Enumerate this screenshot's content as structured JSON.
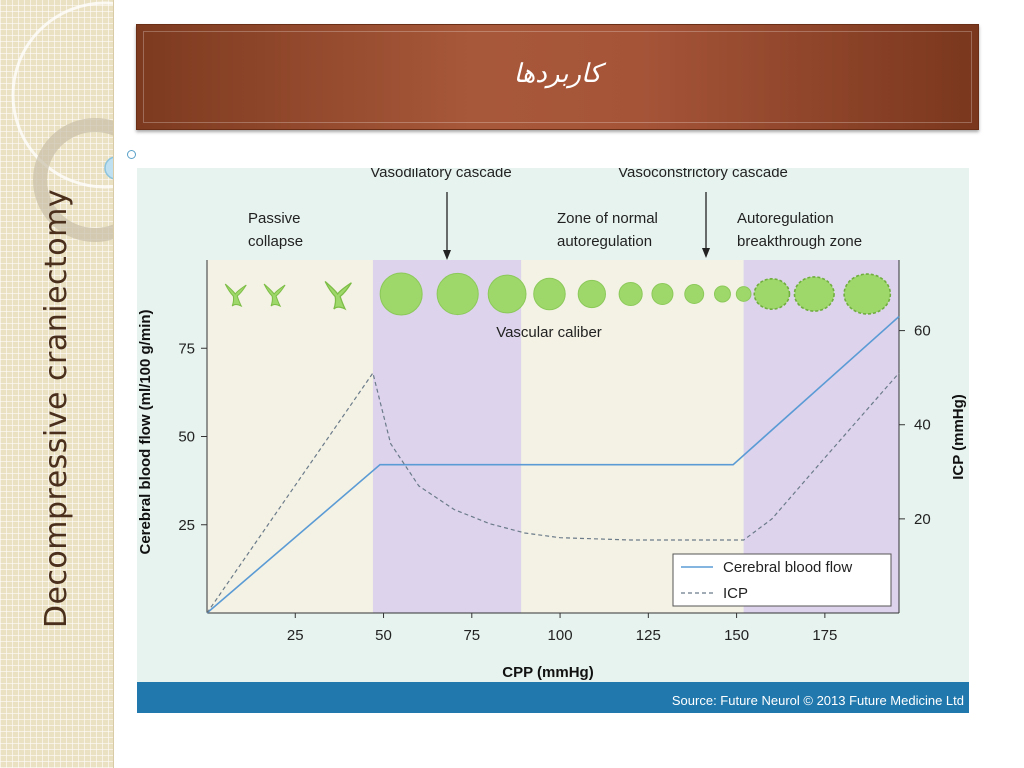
{
  "slide": {
    "title": "کاربردها",
    "sidebar_text": "Decompressive craniectomy"
  },
  "colors": {
    "banner": "#a2533a",
    "figure_background": "#e7f3ef",
    "zone_beige": "#f4f2e4",
    "zone_purple": "#ddd3ec",
    "cbf_line": "#5b9bd5",
    "icp_line": "#6b7b8a",
    "vessel_fill": "#9fd86a",
    "source_bar": "#2178ad"
  },
  "chart_data": {
    "type": "line",
    "xlabel": "CPP (mmHg)",
    "ylabel_left": "Cerebral blood flow (ml/100 g/min)",
    "ylabel_right": "ICP (mmHg)",
    "xlim": [
      0,
      196
    ],
    "ylim_left": [
      0,
      100
    ],
    "ylim_right": [
      0,
      75
    ],
    "x_ticks": [
      25,
      50,
      75,
      100,
      125,
      150,
      175
    ],
    "y_left_ticks": [
      25,
      50,
      75
    ],
    "y_right_ticks": [
      20,
      40,
      60
    ],
    "grid": false,
    "legend": "bottom-right",
    "series": [
      {
        "name": "Cerebral blood flow",
        "axis": "left",
        "style": "solid",
        "points": [
          [
            0,
            0
          ],
          [
            49,
            42
          ],
          [
            149,
            42
          ],
          [
            196,
            84
          ]
        ]
      },
      {
        "name": "ICP",
        "axis": "right",
        "style": "dashed",
        "points": [
          [
            0,
            0
          ],
          [
            47,
            51
          ],
          [
            52,
            36
          ],
          [
            60,
            27
          ],
          [
            70,
            22
          ],
          [
            80,
            19
          ],
          [
            90,
            17
          ],
          [
            100,
            16
          ],
          [
            120,
            15.5
          ],
          [
            152,
            15.5
          ],
          [
            160,
            20
          ],
          [
            175,
            33
          ],
          [
            196,
            51
          ]
        ]
      }
    ],
    "zones": [
      {
        "x": [
          0,
          47
        ],
        "color": "beige",
        "label": "Passive collapse"
      },
      {
        "x": [
          47,
          89
        ],
        "color": "purple"
      },
      {
        "x": [
          89,
          152
        ],
        "color": "beige",
        "label": "Zone of normal autoregulation"
      },
      {
        "x": [
          152,
          196
        ],
        "color": "purple",
        "label": "Autoregulation breakthrough zone"
      }
    ],
    "annotations": {
      "vasodilatory": "Vasodilatory cascade",
      "vasoconstrictory": "Vasoconstrictory cascade",
      "passive": "Passive collapse",
      "normal": "Zone of normal autoregulation",
      "breakthrough": "Autoregulation breakthrough zone",
      "vascular_caliber": "Vascular caliber"
    },
    "vessels": [
      {
        "x": 8,
        "shape": "collapsed"
      },
      {
        "x": 19,
        "shape": "collapsed"
      },
      {
        "x": 37,
        "shape": "collapsed"
      },
      {
        "x": 55,
        "shape": "dilated",
        "size": 1.0
      },
      {
        "x": 71,
        "shape": "dilated",
        "size": 0.98
      },
      {
        "x": 85,
        "shape": "dilated",
        "size": 0.9
      },
      {
        "x": 97,
        "shape": "dilated",
        "size": 0.75
      },
      {
        "x": 109,
        "shape": "dilated",
        "size": 0.65
      },
      {
        "x": 120,
        "shape": "dilated",
        "size": 0.55
      },
      {
        "x": 129,
        "shape": "dilated",
        "size": 0.5
      },
      {
        "x": 138,
        "shape": "dilated",
        "size": 0.45
      },
      {
        "x": 146,
        "shape": "dilated",
        "size": 0.38
      },
      {
        "x": 152,
        "shape": "dilated",
        "size": 0.35
      },
      {
        "x": 160,
        "shape": "breakthrough",
        "size": 0.8
      },
      {
        "x": 172,
        "shape": "breakthrough",
        "size": 0.9
      },
      {
        "x": 187,
        "shape": "breakthrough",
        "size": 1.05
      }
    ],
    "source": "Source: Future Neurol © 2013 Future Medicine Ltd"
  }
}
